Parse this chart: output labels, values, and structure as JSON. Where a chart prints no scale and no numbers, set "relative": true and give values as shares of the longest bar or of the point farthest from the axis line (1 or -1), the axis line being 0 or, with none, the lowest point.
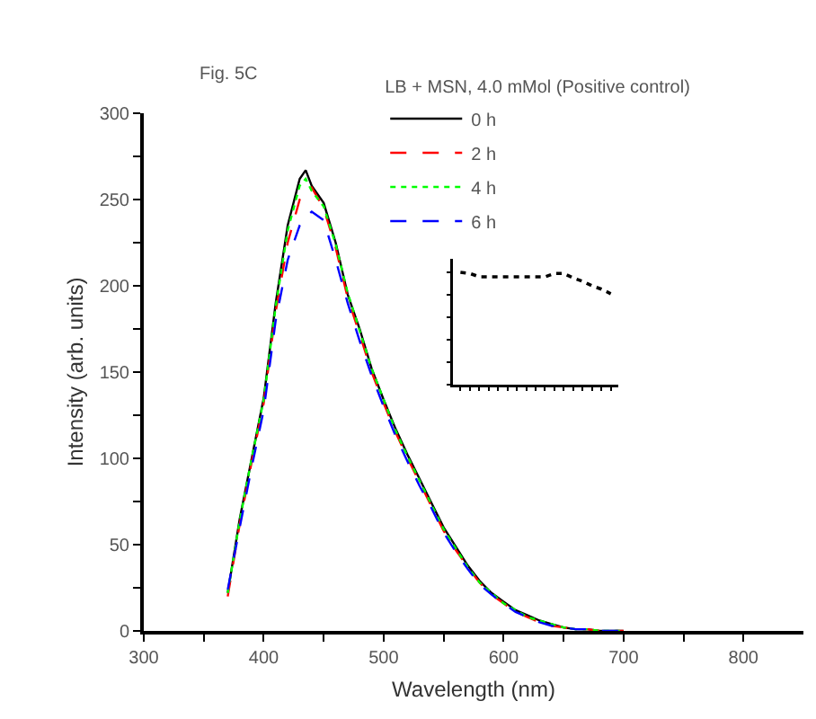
{
  "chart_data": [
    {
      "type": "line",
      "xlabel": "Wavelength (nm)",
      "ylabel": "Intensity (arb. units)",
      "legend_title": "LB + MSN, 4.0 mMol (Positive control)",
      "annotations": [
        "Fig. 5C"
      ],
      "x": [
        370,
        380,
        390,
        400,
        410,
        420,
        430,
        435,
        440,
        450,
        460,
        470,
        480,
        490,
        500,
        510,
        520,
        530,
        540,
        550,
        560,
        570,
        580,
        590,
        600,
        610,
        620,
        630,
        640,
        650,
        660,
        670,
        680,
        690,
        700
      ],
      "series": [
        {
          "name": "0 h",
          "color": "#000000",
          "line_style": "solid",
          "values": [
            22,
            65,
            100,
            135,
            190,
            235,
            262,
            267,
            258,
            248,
            225,
            195,
            175,
            152,
            134,
            117,
            102,
            88,
            74,
            60,
            49,
            38,
            29,
            22,
            17,
            12,
            9,
            6,
            4,
            2,
            1,
            1,
            0,
            0,
            0
          ]
        },
        {
          "name": "2 h",
          "color": "#ff0000",
          "line_style": "dashed",
          "values": [
            20,
            62,
            98,
            132,
            185,
            225,
            250,
            255,
            257,
            245,
            222,
            193,
            172,
            150,
            132,
            115,
            100,
            86,
            72,
            58,
            47,
            37,
            28,
            21,
            16,
            11,
            8,
            5,
            3,
            2,
            1,
            1,
            0,
            0,
            0
          ]
        },
        {
          "name": "4 h",
          "color": "#00ff00",
          "line_style": "dotted",
          "values": [
            22,
            64,
            100,
            134,
            188,
            232,
            258,
            262,
            255,
            246,
            224,
            196,
            174,
            152,
            134,
            116,
            101,
            87,
            73,
            59,
            48,
            37,
            28,
            22,
            16,
            12,
            8,
            6,
            4,
            2,
            1,
            1,
            0,
            0,
            0
          ]
        },
        {
          "name": "6 h",
          "color": "#0000ff",
          "line_style": "dashed",
          "values": [
            24,
            60,
            95,
            128,
            180,
            215,
            235,
            240,
            243,
            238,
            215,
            190,
            168,
            148,
            130,
            113,
            98,
            84,
            71,
            57,
            46,
            36,
            27,
            21,
            16,
            11,
            8,
            5,
            3,
            2,
            1,
            1,
            0,
            0,
            0
          ]
        }
      ],
      "xlim": [
        300,
        850
      ],
      "xticks": [
        300,
        {
          "value": 350,
          "label": null
        },
        400,
        {
          "value": 450,
          "label": null
        },
        500,
        {
          "value": 550,
          "label": null
        },
        600,
        {
          "value": 650,
          "label": null
        },
        700,
        {
          "value": 750,
          "label": null
        },
        800
      ],
      "ylim": [
        0,
        300
      ],
      "yticks": [
        0,
        {
          "value": 25,
          "label": null
        },
        50,
        {
          "value": 75,
          "label": null
        },
        100,
        {
          "value": 125,
          "label": null
        },
        150,
        {
          "value": 175,
          "label": null
        },
        200,
        {
          "value": 225,
          "label": null
        },
        250,
        {
          "value": 275,
          "label": null
        },
        300
      ],
      "grid": false,
      "legend": "top right"
    },
    {
      "type": "line",
      "relative": true,
      "line_style": "dotted",
      "color": "#000000",
      "categories": [
        null,
        null,
        null,
        null,
        null,
        null,
        null,
        null,
        null,
        null,
        null,
        null,
        null,
        null,
        null,
        null,
        null
      ],
      "values": [
        1.0,
        0.99,
        0.96,
        0.96,
        0.96,
        0.96,
        0.96,
        0.96,
        0.96,
        0.96,
        0.99,
        0.99,
        0.95,
        0.92,
        0.88,
        0.85,
        0.81
      ]
    }
  ]
}
